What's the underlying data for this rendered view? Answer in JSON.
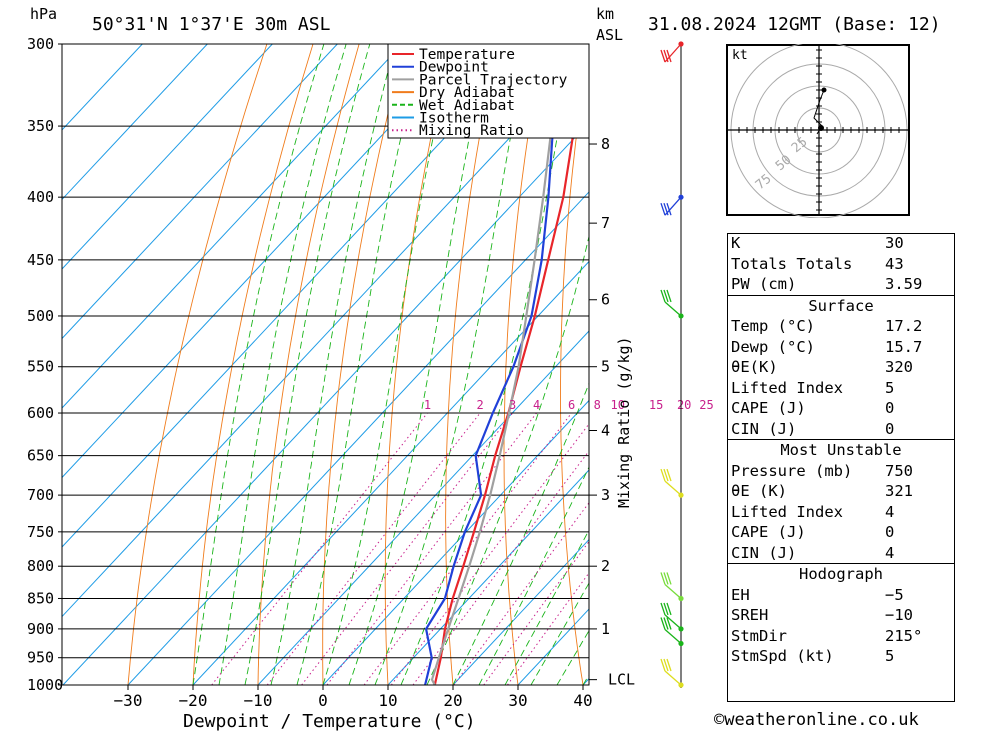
{
  "header": {
    "location": "50°31'N 1°37'E 30m ASL",
    "datetime": "31.08.2024 12GMT (Base: 12)",
    "left_unit": "hPa",
    "right_unit_1": "km",
    "right_unit_2": "ASL"
  },
  "chart_data": {
    "type": "line",
    "title": "50°31'N 1°37'E 30m ASL",
    "xlabel": "Dewpoint / Temperature (°C)",
    "ylabel": "hPa",
    "secondary_ylabel": "Mixing Ratio (g/kg)",
    "xlim": [
      -40,
      40
    ],
    "ylim": [
      1000,
      300
    ],
    "y_scale": "log",
    "x_ticks": [
      -30,
      -20,
      -10,
      0,
      10,
      20,
      30,
      40
    ],
    "pressure_levels": [
      300,
      350,
      400,
      450,
      500,
      550,
      600,
      650,
      700,
      750,
      800,
      850,
      900,
      950,
      1000
    ],
    "km_ticks": [
      {
        "km": "1",
        "p": 900
      },
      {
        "km": "2",
        "p": 800
      },
      {
        "km": "3",
        "p": 700
      },
      {
        "km": "4",
        "p": 620
      },
      {
        "km": "5",
        "p": 550
      },
      {
        "km": "6",
        "p": 485
      },
      {
        "km": "7",
        "p": 420
      },
      {
        "km": "8",
        "p": 362
      }
    ],
    "lcl": {
      "label": "LCL",
      "p": 990
    },
    "mixing_ratio_labels": [
      "1",
      "2",
      "3",
      "4",
      "6",
      "8",
      "10",
      "15",
      "20",
      "25"
    ],
    "mixing_ratio_values": [
      1,
      2,
      3,
      4,
      6,
      8,
      10,
      15,
      20,
      25
    ],
    "legend": {
      "placement": "top-right",
      "items": [
        {
          "name": "Temperature",
          "color": "#e8252a",
          "style": "solid"
        },
        {
          "name": "Dewpoint",
          "color": "#2040d8",
          "style": "solid"
        },
        {
          "name": "Parcel Trajectory",
          "color": "#a0a0a0",
          "style": "solid"
        },
        {
          "name": "Dry Adiabat",
          "color": "#f07c1c",
          "style": "solid"
        },
        {
          "name": "Wet Adiabat",
          "color": "#1ab41a",
          "style": "dashed"
        },
        {
          "name": "Isotherm",
          "color": "#1e9ce6",
          "style": "solid"
        },
        {
          "name": "Mixing Ratio",
          "color": "#c8208c",
          "style": "dotted"
        }
      ]
    },
    "series": [
      {
        "name": "Temperature",
        "points": [
          {
            "p": 1000,
            "t": 17.2
          },
          {
            "p": 950,
            "t": 14.2
          },
          {
            "p": 900,
            "t": 10.7
          },
          {
            "p": 850,
            "t": 7.5
          },
          {
            "p": 800,
            "t": 4.5
          },
          {
            "p": 750,
            "t": 1.2
          },
          {
            "p": 700,
            "t": -2.4
          },
          {
            "p": 650,
            "t": -6.5
          },
          {
            "p": 600,
            "t": -10.6
          },
          {
            "p": 550,
            "t": -15.4
          },
          {
            "p": 500,
            "t": -20.5
          },
          {
            "p": 450,
            "t": -26.5
          },
          {
            "p": 400,
            "t": -33.2
          },
          {
            "p": 350,
            "t": -41.7
          },
          {
            "p": 300,
            "t": -50.5
          }
        ]
      },
      {
        "name": "Dewpoint",
        "points": [
          {
            "p": 1000,
            "t": 15.7
          },
          {
            "p": 950,
            "t": 12.8
          },
          {
            "p": 900,
            "t": 7.8
          },
          {
            "p": 850,
            "t": 6.3
          },
          {
            "p": 800,
            "t": 3.0
          },
          {
            "p": 750,
            "t": -0.2
          },
          {
            "p": 700,
            "t": -3.0
          },
          {
            "p": 650,
            "t": -9.5
          },
          {
            "p": 600,
            "t": -13.0
          },
          {
            "p": 550,
            "t": -16.5
          },
          {
            "p": 500,
            "t": -21.0
          },
          {
            "p": 450,
            "t": -27.5
          },
          {
            "p": 400,
            "t": -35.5
          },
          {
            "p": 350,
            "t": -45.0
          },
          {
            "p": 300,
            "t": -55.5
          }
        ]
      },
      {
        "name": "Parcel Trajectory",
        "points": [
          {
            "p": 1000,
            "t": 17.2
          },
          {
            "p": 990,
            "t": 16.0
          },
          {
            "p": 950,
            "t": 13.9
          },
          {
            "p": 900,
            "t": 11.2
          },
          {
            "p": 850,
            "t": 8.4
          },
          {
            "p": 800,
            "t": 5.4
          },
          {
            "p": 750,
            "t": 2.1
          },
          {
            "p": 700,
            "t": -1.6
          },
          {
            "p": 650,
            "t": -5.8
          },
          {
            "p": 600,
            "t": -10.5
          },
          {
            "p": 550,
            "t": -15.7
          },
          {
            "p": 500,
            "t": -21.8
          },
          {
            "p": 450,
            "t": -28.6
          },
          {
            "p": 400,
            "t": -36.3
          },
          {
            "p": 350,
            "t": -45.2
          },
          {
            "p": 300,
            "t": -55.4
          }
        ]
      }
    ],
    "wind_barbs": [
      {
        "p": 300,
        "color": "#e8252a"
      },
      {
        "p": 400,
        "color": "#2040d8"
      },
      {
        "p": 500,
        "color": "#1ab41a"
      },
      {
        "p": 700,
        "color": "#dede20"
      },
      {
        "p": 850,
        "color": "#78dc3c"
      },
      {
        "p": 900,
        "color": "#1ab41a"
      },
      {
        "p": 925,
        "color": "#1ab41a"
      },
      {
        "p": 1000,
        "color": "#dede20"
      }
    ]
  },
  "hodograph": {
    "label": "kt",
    "ring_labels": [
      "25",
      "50",
      "75"
    ]
  },
  "indices": {
    "top": [
      {
        "label": "K",
        "value": "30"
      },
      {
        "label": "Totals Totals",
        "value": "43"
      },
      {
        "label": "PW (cm)",
        "value": "3.59"
      }
    ],
    "surface": {
      "title": "Surface",
      "rows": [
        {
          "label": "Temp (°C)",
          "value": "17.2"
        },
        {
          "label": "Dewp (°C)",
          "value": "15.7"
        },
        {
          "label": "θE(K)",
          "value": "320"
        },
        {
          "label": "Lifted Index",
          "value": "5"
        },
        {
          "label": "CAPE (J)",
          "value": "0"
        },
        {
          "label": "CIN (J)",
          "value": "0"
        }
      ]
    },
    "most_unstable": {
      "title": "Most Unstable",
      "rows": [
        {
          "label": "Pressure (mb)",
          "value": "750"
        },
        {
          "label": "θE (K)",
          "value": "321"
        },
        {
          "label": "Lifted Index",
          "value": "4"
        },
        {
          "label": "CAPE (J)",
          "value": "0"
        },
        {
          "label": "CIN (J)",
          "value": "4"
        }
      ]
    },
    "hodograph": {
      "title": "Hodograph",
      "rows": [
        {
          "label": "EH",
          "value": "−5"
        },
        {
          "label": "SREH",
          "value": "−10"
        },
        {
          "label": "StmDir",
          "value": "215°"
        },
        {
          "label": "StmSpd (kt)",
          "value": "5"
        }
      ]
    }
  },
  "credit": "©weatheronline.co.uk"
}
